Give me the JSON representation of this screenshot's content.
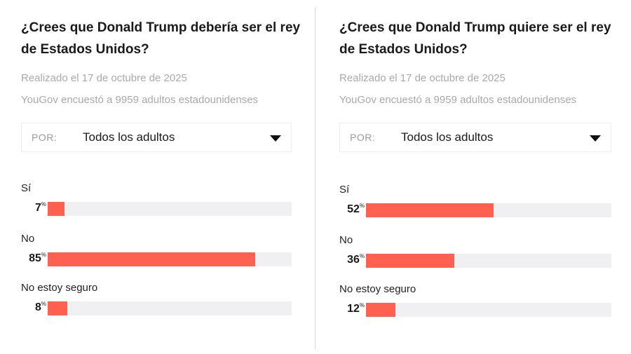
{
  "chart_data": [
    {
      "type": "bar",
      "title": "¿Crees que Donald Trump debería ser el rey de Estados Unidos?",
      "date": "Realizado el 17 de octubre de 2025",
      "source": "YouGov encuestó a 9959 adultos estadounidenses",
      "filter_label": "POR:",
      "filter_value": "Todos los adultos",
      "categories": [
        "Sí",
        "No",
        "No estoy seguro"
      ],
      "values": [
        7,
        85,
        8
      ],
      "unit": "%",
      "xlim": [
        0,
        100
      ],
      "color": "#fe6150",
      "track_color": "#f0f0f2"
    },
    {
      "type": "bar",
      "title": "¿Crees que Donald Trump quiere ser el rey de Estados Unidos?",
      "date": "Realizado el 17 de octubre de 2025",
      "source": "YouGov encuestó a 9959 adultos estadounidenses",
      "filter_label": "POR:",
      "filter_value": "Todos los adultos",
      "categories": [
        "Sí",
        "No",
        "No estoy seguro"
      ],
      "values": [
        52,
        36,
        12
      ],
      "unit": "%",
      "xlim": [
        0,
        100
      ],
      "color": "#fe6150",
      "track_color": "#f0f0f2"
    }
  ]
}
